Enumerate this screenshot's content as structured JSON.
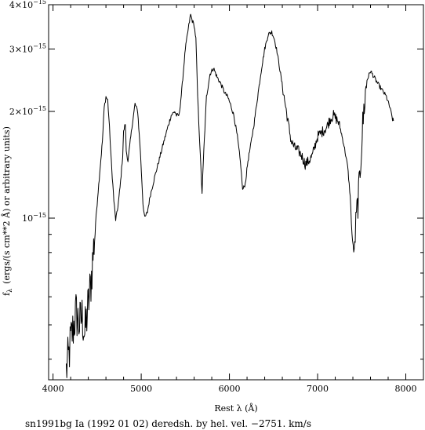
{
  "chart_data": {
    "type": "line",
    "title": "",
    "xlabel": "Rest λ (Å)",
    "ylabel": "f_λ (ergs/(s cm**2 Å) or arbitrary units)",
    "ylabel_main": "(ergs/(s cm**2 Å) or arbitrary units)",
    "ylabel_symbol": "f",
    "ylabel_subscript": "λ",
    "caption": "sn1991bg Ia (1992 01 02) deredsh. by hel. vel. −2751. km/s",
    "x_scale": "linear",
    "y_scale": "log",
    "xlim": [
      3950,
      8200
    ],
    "ylim": [
      3.5e-16,
      4e-15
    ],
    "grid": false,
    "x_ticks": [
      {
        "value": 4000,
        "label": "4000"
      },
      {
        "value": 5000,
        "label": "5000"
      },
      {
        "value": 6000,
        "label": "6000"
      },
      {
        "value": 7000,
        "label": "7000"
      },
      {
        "value": 8000,
        "label": "8000"
      }
    ],
    "x_minor_step": 200,
    "y_ticks": [
      {
        "value": 1e-15,
        "mantissa": "10",
        "exponent": "−15"
      },
      {
        "value": 2e-15,
        "mantissa": "2×10",
        "exponent": "−15"
      },
      {
        "value": 3e-15,
        "mantissa": "3×10",
        "exponent": "−15"
      },
      {
        "value": 4e-15,
        "mantissa": "4×10",
        "exponent": "−15"
      }
    ],
    "y_minor_ticks": [
      4e-16,
      5e-16,
      6e-16,
      7e-16,
      8e-16,
      9e-16
    ],
    "series": [
      {
        "color": "#000000",
        "x": [
          4150,
          4180,
          4200,
          4230,
          4260,
          4300,
          4330,
          4360,
          4400,
          4430,
          4460,
          4500,
          4530,
          4560,
          4580,
          4600,
          4620,
          4640,
          4660,
          4690,
          4710,
          4730,
          4760,
          4790,
          4800,
          4820,
          4830,
          4850,
          4870,
          4900,
          4930,
          4960,
          4990,
          5020,
          5040,
          5070,
          5100,
          5150,
          5200,
          5250,
          5300,
          5340,
          5380,
          5400,
          5430,
          5460,
          5500,
          5540,
          5560,
          5580,
          5600,
          5620,
          5640,
          5670,
          5690,
          5710,
          5740,
          5780,
          5820,
          5860,
          5900,
          5950,
          5980,
          6010,
          6050,
          6090,
          6130,
          6150,
          6180,
          6210,
          6240,
          6280,
          6320,
          6360,
          6400,
          6440,
          6480,
          6510,
          6540,
          6580,
          6620,
          6660,
          6700,
          6740,
          6780,
          6820,
          6860,
          6900,
          6940,
          6970,
          7000,
          7050,
          7100,
          7140,
          7180,
          7200,
          7230,
          7260,
          7300,
          7340,
          7370,
          7390,
          7410,
          7420,
          7440,
          7470,
          7500,
          7530,
          7560,
          7600,
          7640,
          7680,
          7730,
          7780,
          7820,
          7850,
          7860
        ],
        "y": [
          3.7e-16,
          4.1e-16,
          4.5e-16,
          4.9e-16,
          5.4e-16,
          5e-16,
          5.3e-16,
          4.7e-16,
          5.7e-16,
          6.6e-16,
          8.2e-16,
          1.1e-15,
          1.35e-15,
          1.65e-15,
          2.05e-15,
          2.2e-15,
          2.15e-15,
          1.8e-15,
          1.45e-15,
          1.12e-15,
          9.9e-16,
          1.05e-15,
          1.22e-15,
          1.5e-15,
          1.75e-15,
          1.85e-15,
          1.55e-15,
          1.45e-15,
          1.6e-15,
          1.85e-15,
          2.1e-15,
          2e-15,
          1.55e-15,
          1.1e-15,
          1e-15,
          1.04e-15,
          1.15e-15,
          1.3e-15,
          1.45e-15,
          1.62e-15,
          1.8e-15,
          1.95e-15,
          2e-15,
          1.95e-15,
          1.95e-15,
          2.3e-15,
          3e-15,
          3.5e-15,
          3.75e-15,
          3.6e-15,
          3.5e-15,
          3.2e-15,
          2.2e-15,
          1.5e-15,
          1.18e-15,
          1.55e-15,
          2.2e-15,
          2.55e-15,
          2.65e-15,
          2.5e-15,
          2.4e-15,
          2.25e-15,
          2.2e-15,
          2.1e-15,
          1.95e-15,
          1.7e-15,
          1.4e-15,
          1.2e-15,
          1.25e-15,
          1.45e-15,
          1.6e-15,
          1.85e-15,
          2.2e-15,
          2.6e-15,
          3e-15,
          3.3e-15,
          3.35e-15,
          3.2e-15,
          2.95e-15,
          2.55e-15,
          2.2e-15,
          1.9e-15,
          1.65e-15,
          1.58e-15,
          1.55e-15,
          1.5e-15,
          1.42e-15,
          1.45e-15,
          1.5e-15,
          1.6e-15,
          1.7e-15,
          1.75e-15,
          1.8e-15,
          1.9e-15,
          1.95e-15,
          1.92e-15,
          1.88e-15,
          1.78e-15,
          1.6e-15,
          1.4e-15,
          1.15e-15,
          9e-16,
          8e-16,
          8.5e-16,
          1e-15,
          1.2e-15,
          1.65e-15,
          2.1e-15,
          2.45e-15,
          2.6e-15,
          2.5e-15,
          2.4e-15,
          2.3e-15,
          2.2e-15,
          2.05e-15,
          1.9e-15,
          1.88e-15
        ]
      }
    ]
  }
}
